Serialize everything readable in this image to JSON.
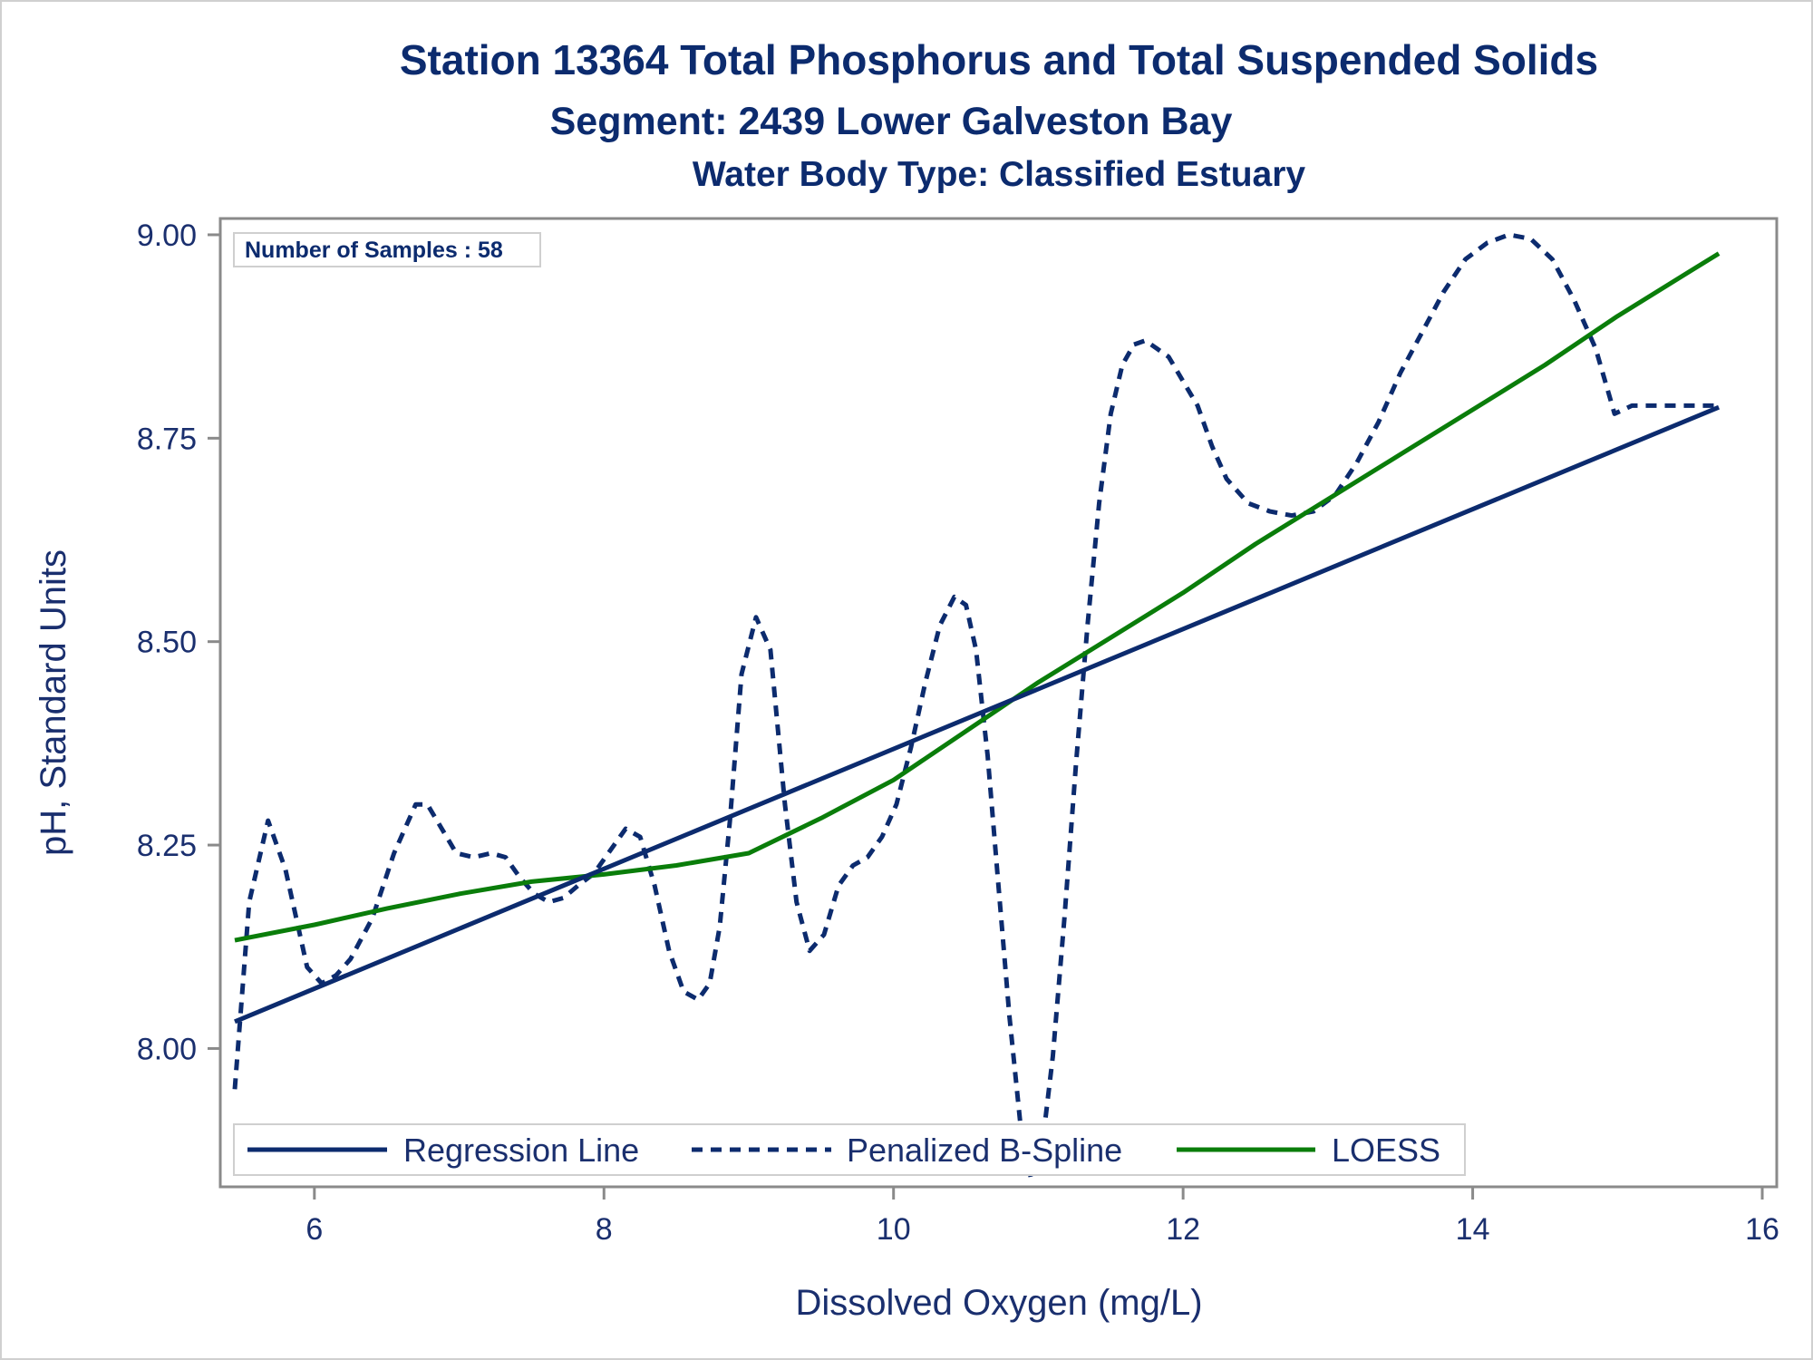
{
  "chart_data": {
    "type": "line",
    "title": "Station 13364  Total Phosphorus and Total Suspended Solids",
    "subtitle": "Segment: 2439  Lower Galveston Bay",
    "subtitle2": "Water Body Type: Classified Estuary",
    "xlabel": "Dissolved Oxygen (mg/L)",
    "ylabel": "pH, Standard Units",
    "xlim": [
      5.35,
      16.1
    ],
    "ylim": [
      7.83,
      9.02
    ],
    "x_ticks": [
      6,
      8,
      10,
      12,
      14,
      16
    ],
    "y_ticks": [
      8.0,
      8.25,
      8.5,
      8.75,
      9.0
    ],
    "x_tick_labels": [
      "6",
      "8",
      "10",
      "12",
      "14",
      "16"
    ],
    "y_tick_labels": [
      "8.00",
      "8.25",
      "8.50",
      "8.75",
      "9.00"
    ],
    "grid": false,
    "legend_position": "bottom-inside",
    "annotation": "Number of Samples : 58",
    "colors": {
      "navy": "#0c2b6e",
      "green": "#0a7d0a",
      "frame": "#8a8a8a"
    },
    "series": [
      {
        "name": "Regression Line",
        "style": "solid",
        "color": "#0c2b6e",
        "x": [
          5.45,
          15.7
        ],
        "y": [
          8.033,
          8.788
        ]
      },
      {
        "name": "Penalized B-Spline",
        "style": "dashed",
        "color": "#0c2b6e",
        "x": [
          5.45,
          5.55,
          5.68,
          5.8,
          5.95,
          6.05,
          6.15,
          6.25,
          6.4,
          6.55,
          6.7,
          6.78,
          6.88,
          6.98,
          7.1,
          7.22,
          7.32,
          7.42,
          7.52,
          7.62,
          7.72,
          7.82,
          7.93,
          8.03,
          8.15,
          8.25,
          8.35,
          8.45,
          8.55,
          8.65,
          8.73,
          8.8,
          8.87,
          8.95,
          9.05,
          9.15,
          9.25,
          9.33,
          9.42,
          9.52,
          9.62,
          9.72,
          9.82,
          9.92,
          10.02,
          10.12,
          10.22,
          10.32,
          10.42,
          10.5,
          10.57,
          10.65,
          10.72,
          10.8,
          10.88,
          10.95,
          11.02,
          11.1,
          11.18,
          11.26,
          11.34,
          11.42,
          11.5,
          11.58,
          11.66,
          11.74,
          11.82,
          11.9,
          12.0,
          12.1,
          12.2,
          12.3,
          12.45,
          12.6,
          12.75,
          12.9,
          13.05,
          13.2,
          13.35,
          13.5,
          13.65,
          13.8,
          13.95,
          14.1,
          14.25,
          14.4,
          14.55,
          14.7,
          14.85,
          14.98,
          15.1,
          15.2,
          15.3,
          15.4,
          15.5,
          15.6,
          15.7
        ],
        "y": [
          7.95,
          8.18,
          8.28,
          8.22,
          8.1,
          8.08,
          8.09,
          8.11,
          8.16,
          8.24,
          8.3,
          8.3,
          8.27,
          8.24,
          8.235,
          8.24,
          8.235,
          8.21,
          8.19,
          8.18,
          8.185,
          8.2,
          8.215,
          8.24,
          8.27,
          8.26,
          8.2,
          8.12,
          8.07,
          8.06,
          8.08,
          8.15,
          8.28,
          8.46,
          8.53,
          8.49,
          8.3,
          8.18,
          8.12,
          8.14,
          8.2,
          8.225,
          8.235,
          8.26,
          8.3,
          8.37,
          8.45,
          8.52,
          8.555,
          8.545,
          8.49,
          8.36,
          8.21,
          8.04,
          7.9,
          7.84,
          7.87,
          7.99,
          8.16,
          8.35,
          8.52,
          8.67,
          8.78,
          8.84,
          8.865,
          8.87,
          8.86,
          8.85,
          8.82,
          8.79,
          8.74,
          8.7,
          8.67,
          8.66,
          8.655,
          8.66,
          8.68,
          8.72,
          8.77,
          8.83,
          8.88,
          8.93,
          8.97,
          8.99,
          9.0,
          8.995,
          8.97,
          8.92,
          8.86,
          8.78,
          8.79,
          8.79,
          8.79,
          8.79,
          8.79,
          8.79,
          8.79
        ]
      },
      {
        "name": "LOESS",
        "style": "solid",
        "color": "#0a7d0a",
        "x": [
          5.45,
          6.0,
          6.5,
          7.0,
          7.5,
          8.0,
          8.5,
          9.0,
          9.5,
          10.0,
          10.5,
          11.0,
          11.5,
          12.0,
          12.5,
          13.0,
          13.5,
          14.0,
          14.5,
          15.0,
          15.5,
          15.7
        ],
        "y": [
          8.133,
          8.152,
          8.172,
          8.19,
          8.205,
          8.214,
          8.225,
          8.24,
          8.283,
          8.33,
          8.39,
          8.45,
          8.505,
          8.56,
          8.62,
          8.675,
          8.73,
          8.785,
          8.84,
          8.9,
          8.955,
          8.977
        ]
      }
    ]
  }
}
